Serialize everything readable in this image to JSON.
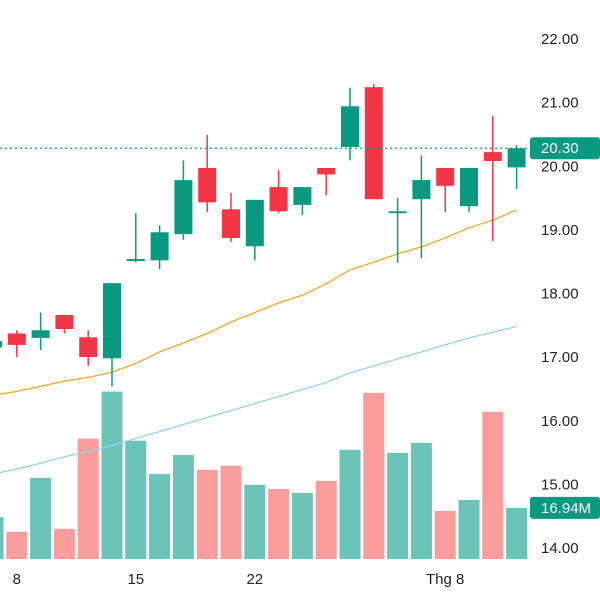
{
  "chart_data": {
    "type": "candlestick",
    "categories": [
      null,
      "8",
      null,
      null,
      null,
      null,
      "15",
      null,
      null,
      null,
      null,
      "22",
      null,
      null,
      null,
      null,
      null,
      null,
      null,
      "Thg 8",
      null,
      null,
      null
    ],
    "open": [
      17.17,
      17.39,
      17.32,
      17.68,
      17.33,
      17.0,
      18.53,
      18.54,
      18.95,
      19.99,
      19.34,
      18.76,
      19.69,
      19.41,
      19.99,
      20.32,
      21.26,
      19.28,
      19.5,
      19.99,
      19.39,
      20.24,
      20.0
    ],
    "high": [
      17.3,
      17.44,
      17.72,
      17.68,
      17.44,
      18.18,
      19.28,
      19.09,
      20.11,
      20.51,
      19.6,
      19.49,
      19.96,
      19.69,
      19.99,
      21.25,
      21.31,
      19.52,
      20.19,
      19.99,
      19.99,
      20.81,
      20.35
    ],
    "low": [
      17.15,
      17.02,
      17.13,
      17.39,
      16.88,
      16.56,
      18.51,
      18.4,
      18.86,
      19.3,
      18.83,
      18.54,
      19.28,
      19.25,
      19.56,
      20.11,
      19.5,
      18.5,
      18.57,
      19.3,
      19.3,
      18.84,
      19.66
    ],
    "close": [
      17.27,
      17.21,
      17.44,
      17.46,
      17.02,
      18.18,
      18.56,
      18.98,
      19.8,
      19.45,
      18.89,
      19.49,
      19.31,
      19.69,
      19.89,
      20.96,
      19.5,
      19.31,
      19.8,
      19.71,
      19.99,
      20.1,
      20.3
    ],
    "up_color": "#089981",
    "down_color": "#f23645",
    "ylim": [
      13.83,
      22.63
    ],
    "yticks": [
      {
        "value": 14,
        "label": "14.00"
      },
      {
        "value": 15,
        "label": "15.00"
      },
      {
        "value": 16,
        "label": "16.00"
      },
      {
        "value": 17,
        "label": "17.00"
      },
      {
        "value": 18,
        "label": "18.00"
      },
      {
        "value": 19,
        "label": "19.00"
      },
      {
        "value": 20,
        "label": "20.00"
      },
      {
        "value": 21,
        "label": "21.00"
      },
      {
        "value": 22,
        "label": "22.00"
      }
    ],
    "last_price_label": "20.30",
    "series": [
      {
        "color": "#f5a623",
        "values": [
          16.42,
          16.48,
          16.56,
          16.64,
          16.7,
          16.78,
          16.92,
          17.1,
          17.24,
          17.39,
          17.57,
          17.72,
          17.87,
          17.99,
          18.17,
          18.39,
          18.51,
          18.64,
          18.75,
          18.89,
          19.05,
          19.17,
          19.33
        ]
      },
      {
        "color": "#8fd3f2",
        "values": [
          15.18,
          15.26,
          15.35,
          15.45,
          15.54,
          15.63,
          15.74,
          15.85,
          15.96,
          16.07,
          16.18,
          16.29,
          16.4,
          16.51,
          16.62,
          16.77,
          16.88,
          16.99,
          17.1,
          17.21,
          17.32,
          17.41,
          17.5
        ]
      }
    ],
    "volume": {
      "values": [
        13.9,
        9.0,
        26.9,
        10.0,
        39.9,
        55.5,
        39.2,
        28.2,
        34.5,
        29.6,
        30.9,
        24.6,
        23.2,
        21.9,
        25.9,
        36.2,
        55.1,
        35.2,
        38.5,
        15.9,
        19.6,
        48.8,
        16.94
      ],
      "up_color": "#6cc3b7",
      "down_color": "#f99c9c",
      "y2lim": [
        0,
        60
      ],
      "last_label": "16.94M"
    }
  }
}
